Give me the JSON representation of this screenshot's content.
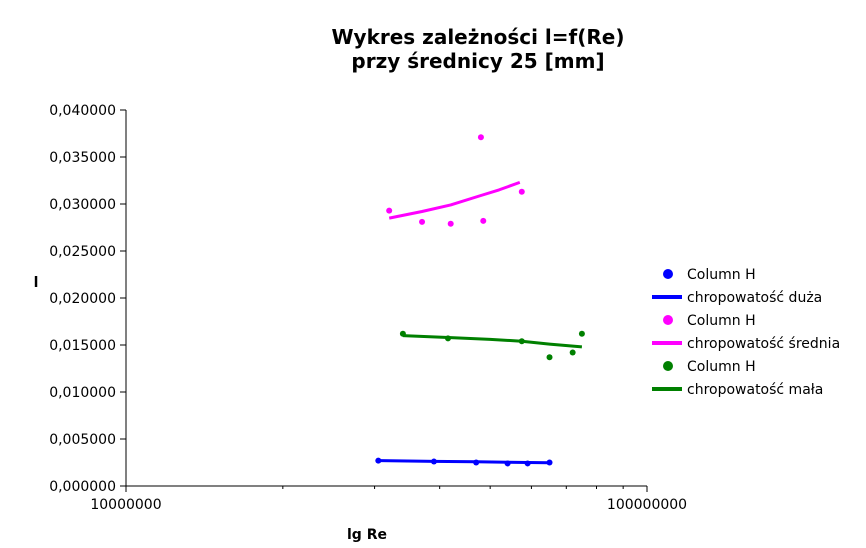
{
  "chart_data": {
    "type": "scatter",
    "title": [
      "Wykres zależności l=f(Re)",
      "przy średnicy 25 [mm]"
    ],
    "xlabel": "lg Re",
    "ylabel": "l",
    "x_scale": "log",
    "xlim": [
      10000000,
      100000000
    ],
    "ylim": [
      0,
      0.04
    ],
    "x_ticks": [
      10000000,
      100000000
    ],
    "x_tick_labels": [
      "10000000",
      "100000000"
    ],
    "y_ticks": [
      0,
      0.005,
      0.01,
      0.015,
      0.02,
      0.025,
      0.03,
      0.035,
      0.04
    ],
    "y_tick_labels": [
      "0,000000",
      "0,005000",
      "0,010000",
      "0,015000",
      "0,020000",
      "0,025000",
      "0,030000",
      "0,035000",
      "0,040000"
    ],
    "legend_position": "right",
    "series": [
      {
        "name": "Column H",
        "kind": "points",
        "color": "#0000ff",
        "points": [
          [
            30500000,
            0.0027
          ],
          [
            39000000,
            0.0026
          ],
          [
            47000000,
            0.0025
          ],
          [
            54000000,
            0.0024
          ],
          [
            59000000,
            0.0024
          ],
          [
            65000000,
            0.0025
          ]
        ]
      },
      {
        "name": "chropowatość duża",
        "kind": "line",
        "color": "#0000ff",
        "points": [
          [
            30500000,
            0.0027
          ],
          [
            39000000,
            0.00262
          ],
          [
            47000000,
            0.00258
          ],
          [
            54000000,
            0.00253
          ],
          [
            59000000,
            0.0025
          ],
          [
            65000000,
            0.00248
          ]
        ]
      },
      {
        "name": "Column H",
        "kind": "points",
        "color": "#ff00ff",
        "points": [
          [
            32000000,
            0.0293
          ],
          [
            37000000,
            0.0281
          ],
          [
            42000000,
            0.0279
          ],
          [
            48000000,
            0.0371
          ],
          [
            48500000,
            0.0282
          ],
          [
            57500000,
            0.0313
          ]
        ]
      },
      {
        "name": "chropowatość średnia",
        "kind": "line",
        "color": "#ff00ff",
        "points": [
          [
            32000000,
            0.0285
          ],
          [
            37000000,
            0.0292
          ],
          [
            42000000,
            0.0299
          ],
          [
            48000000,
            0.0309
          ],
          [
            52000000,
            0.0315
          ],
          [
            57000000,
            0.0323
          ]
        ]
      },
      {
        "name": "Column H",
        "kind": "points",
        "color": "#008000",
        "points": [
          [
            34000000,
            0.0162
          ],
          [
            41500000,
            0.0157
          ],
          [
            57500000,
            0.0154
          ],
          [
            65000000,
            0.0137
          ],
          [
            72000000,
            0.0142
          ],
          [
            75000000,
            0.0162
          ]
        ]
      },
      {
        "name": "chropowatość mała",
        "kind": "line",
        "color": "#008000",
        "points": [
          [
            34000000,
            0.016
          ],
          [
            41500000,
            0.0158
          ],
          [
            50000000,
            0.0156
          ],
          [
            57500000,
            0.0154
          ],
          [
            65000000,
            0.0151
          ],
          [
            75000000,
            0.0148
          ]
        ]
      }
    ]
  }
}
